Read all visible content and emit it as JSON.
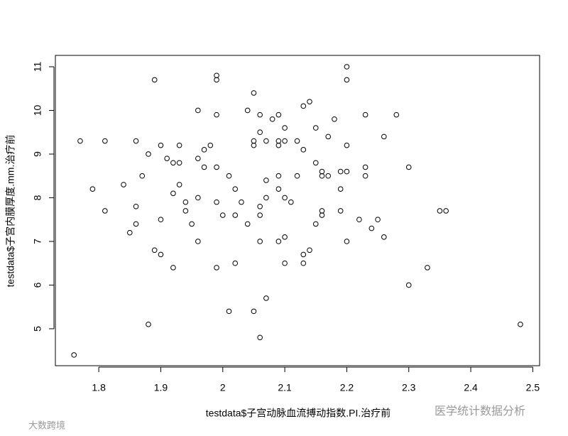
{
  "chart_data": {
    "type": "scatter",
    "x_label": "testdata$子宫动脉血流搏动指数.PI.治疗前",
    "y_label": "testdata$子宫内膜厚度.mm.治疗前",
    "watermarks": [
      "医学统计数据分析",
      "大数跨境"
    ],
    "xlim": [
      1.73,
      2.511
    ],
    "ylim": [
      4.154,
      11.26
    ],
    "xticks": [
      1.8,
      1.9,
      2.0,
      2.1,
      2.2,
      2.3,
      2.4,
      2.5
    ],
    "yticks": [
      5,
      6,
      7,
      8,
      9,
      10,
      11
    ],
    "color": "#000000",
    "grid": false,
    "series": [
      {
        "name": null,
        "color": "#000000",
        "x": [
          1.76,
          1.77,
          1.79,
          1.81,
          1.81,
          1.84,
          1.85,
          1.86,
          1.86,
          1.86,
          1.87,
          1.88,
          1.88,
          1.89,
          1.89,
          1.9,
          1.9,
          1.9,
          1.91,
          1.92,
          1.92,
          1.92,
          1.93,
          1.93,
          1.93,
          1.94,
          1.94,
          1.95,
          1.96,
          1.96,
          1.96,
          1.96,
          1.97,
          1.97,
          1.98,
          1.99,
          1.99,
          1.99,
          1.99,
          1.99,
          1.99,
          2.0,
          2.01,
          2.01,
          2.02,
          2.02,
          2.02,
          2.03,
          2.04,
          2.04,
          2.05,
          2.05,
          2.05,
          2.05,
          2.06,
          2.06,
          2.06,
          2.06,
          2.06,
          2.06,
          2.07,
          2.07,
          2.07,
          2.07,
          2.08,
          2.09,
          2.09,
          2.09,
          2.09,
          2.09,
          2.09,
          2.1,
          2.1,
          2.1,
          2.1,
          2.1,
          2.11,
          2.12,
          2.12,
          2.13,
          2.13,
          2.13,
          2.13,
          2.14,
          2.14,
          2.15,
          2.15,
          2.15,
          2.16,
          2.16,
          2.16,
          2.16,
          2.17,
          2.17,
          2.18,
          2.19,
          2.19,
          2.19,
          2.2,
          2.2,
          2.2,
          2.2,
          2.2,
          2.22,
          2.23,
          2.23,
          2.23,
          2.24,
          2.25,
          2.26,
          2.26,
          2.28,
          2.3,
          2.3,
          2.33,
          2.35,
          2.36,
          2.48
        ],
        "values": [
          4.4,
          9.3,
          8.2,
          9.3,
          7.7,
          8.3,
          7.2,
          9.3,
          7.8,
          7.4,
          8.5,
          9.0,
          5.1,
          10.7,
          6.8,
          9.2,
          7.5,
          6.7,
          8.9,
          8.8,
          8.1,
          6.4,
          9.2,
          8.8,
          8.3,
          7.9,
          7.7,
          7.4,
          10.0,
          8.9,
          8.0,
          7.0,
          9.1,
          8.7,
          9.2,
          10.8,
          10.7,
          9.9,
          8.7,
          7.9,
          6.4,
          7.6,
          8.5,
          5.4,
          8.2,
          7.6,
          6.5,
          7.9,
          10.0,
          7.4,
          10.4,
          9.3,
          9.2,
          5.4,
          9.9,
          9.5,
          7.8,
          7.6,
          7.0,
          4.8,
          9.3,
          8.4,
          8.0,
          5.7,
          9.8,
          9.9,
          9.3,
          9.2,
          8.5,
          8.2,
          7.0,
          9.6,
          9.3,
          8.0,
          7.1,
          6.5,
          7.9,
          9.3,
          8.5,
          10.1,
          9.1,
          6.7,
          6.5,
          10.2,
          6.8,
          9.6,
          8.8,
          7.4,
          8.6,
          8.5,
          7.7,
          7.6,
          9.4,
          8.5,
          9.8,
          8.6,
          8.2,
          7.7,
          11.0,
          10.7,
          9.2,
          8.6,
          7.0,
          7.5,
          9.9,
          8.7,
          8.5,
          7.3,
          7.5,
          9.4,
          7.1,
          9.9,
          8.7,
          6.0,
          6.4,
          7.7,
          7.7,
          5.1
        ]
      }
    ]
  }
}
